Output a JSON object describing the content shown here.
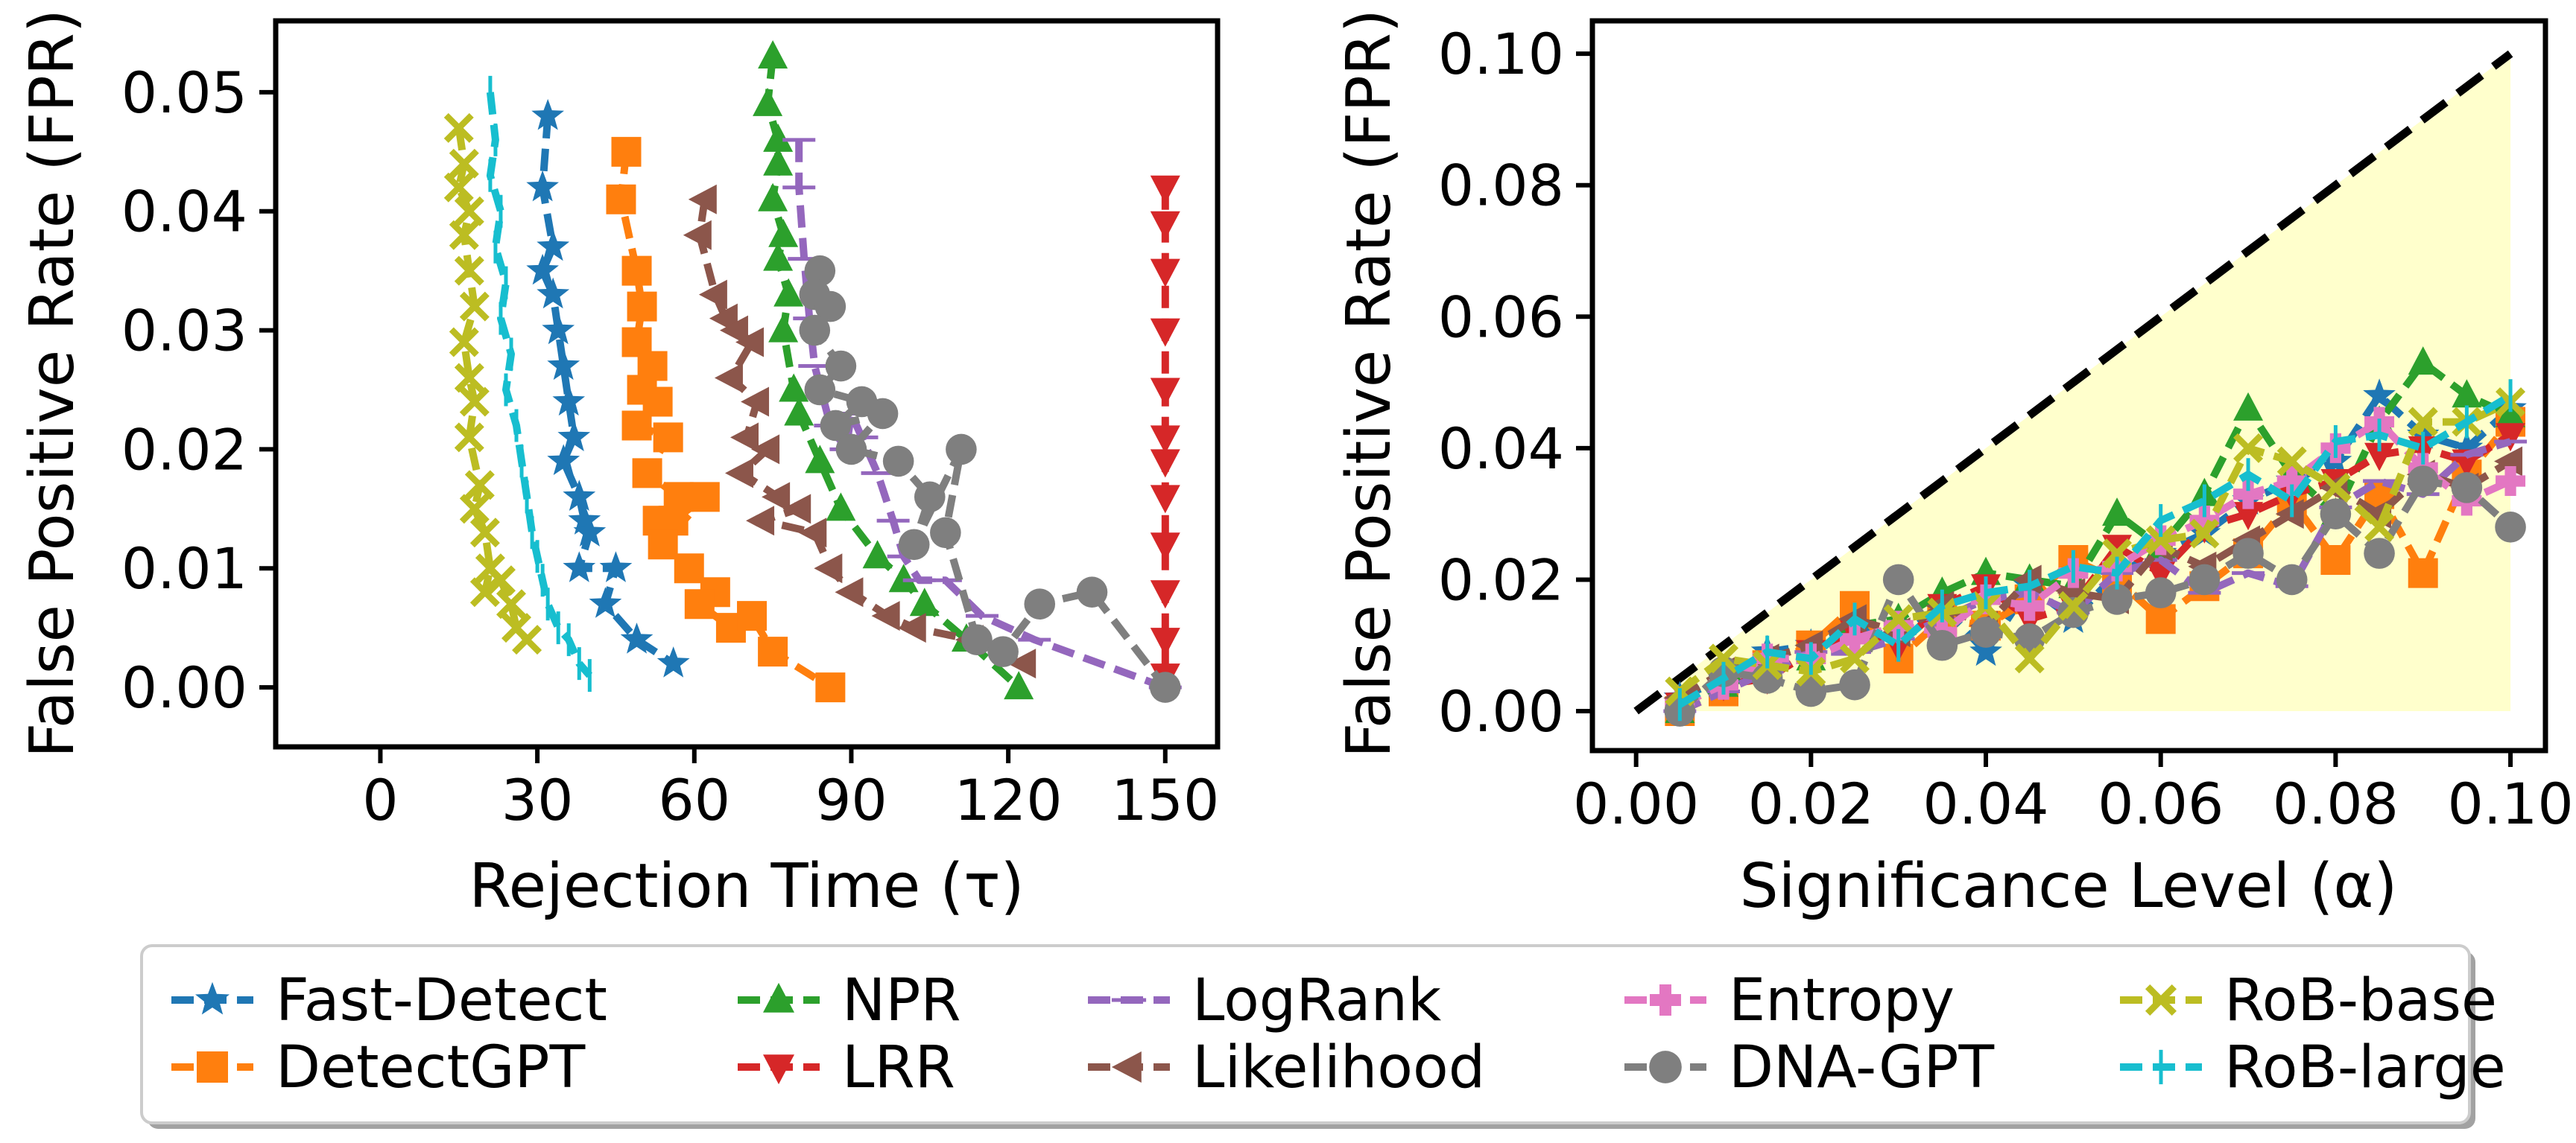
{
  "chart_data": [
    {
      "type": "line",
      "id": "left",
      "title": "",
      "xlabel": "Rejection Time (τ)",
      "ylabel": "False Positive Rate (FPR)",
      "xlim": [
        -20,
        160
      ],
      "ylim": [
        -0.005,
        0.056
      ],
      "xticks": [
        0,
        30,
        60,
        90,
        120,
        150
      ],
      "yticks": [
        0.0,
        0.01,
        0.02,
        0.03,
        0.04,
        0.05
      ],
      "xtick_labels": [
        "0",
        "30",
        "60",
        "90",
        "120",
        "150"
      ],
      "ytick_labels": [
        "0.00",
        "0.01",
        "0.02",
        "0.03",
        "0.04",
        "0.05"
      ],
      "series": [
        {
          "name": "Fast-Detect",
          "x": [
            32,
            31,
            33,
            31,
            33,
            34,
            35,
            36,
            37,
            35,
            38,
            39,
            40,
            38,
            45,
            43,
            49,
            56
          ],
          "y": [
            0.048,
            0.042,
            0.037,
            0.035,
            0.033,
            0.03,
            0.027,
            0.024,
            0.021,
            0.019,
            0.016,
            0.014,
            0.013,
            0.01,
            0.01,
            0.007,
            0.004,
            0.002
          ]
        },
        {
          "name": "DetectGPT",
          "x": [
            47,
            46,
            49,
            50,
            49,
            52,
            50,
            53,
            49,
            55,
            51,
            57,
            53,
            56,
            62,
            54,
            59,
            64,
            61,
            67,
            71,
            75,
            86
          ],
          "y": [
            0.045,
            0.041,
            0.035,
            0.032,
            0.029,
            0.027,
            0.025,
            0.024,
            0.022,
            0.021,
            0.018,
            0.016,
            0.014,
            0.014,
            0.016,
            0.012,
            0.01,
            0.008,
            0.007,
            0.005,
            0.006,
            0.003,
            0.0
          ]
        },
        {
          "name": "NPR",
          "x": [
            75,
            74,
            76,
            76,
            75,
            77,
            76,
            78,
            77,
            79,
            80,
            84,
            88,
            95,
            100,
            104,
            112,
            122
          ],
          "y": [
            0.053,
            0.049,
            0.046,
            0.044,
            0.041,
            0.038,
            0.036,
            0.033,
            0.03,
            0.025,
            0.023,
            0.019,
            0.015,
            0.011,
            0.009,
            0.007,
            0.004,
            0.0
          ]
        },
        {
          "name": "LRR",
          "x": [
            150,
            150,
            150,
            150,
            150,
            150,
            150,
            150,
            150,
            150,
            150,
            150
          ],
          "y": [
            0.042,
            0.039,
            0.035,
            0.03,
            0.025,
            0.021,
            0.019,
            0.016,
            0.012,
            0.008,
            0.004,
            0.001
          ]
        },
        {
          "name": "LogRank",
          "x": [
            80,
            80,
            81,
            82,
            83,
            86,
            89,
            90,
            92,
            95,
            98,
            100,
            103,
            108,
            115,
            125,
            150
          ],
          "y": [
            0.046,
            0.042,
            0.036,
            0.031,
            0.027,
            0.022,
            0.02,
            0.023,
            0.021,
            0.018,
            0.014,
            0.011,
            0.009,
            0.009,
            0.006,
            0.004,
            0.0
          ]
        },
        {
          "name": "Likelihood",
          "x": [
            62,
            61,
            64,
            66,
            68,
            71,
            67,
            72,
            70,
            74,
            69,
            76,
            80,
            73,
            83,
            86,
            90,
            97,
            102,
            113,
            123
          ],
          "y": [
            0.041,
            0.038,
            0.033,
            0.031,
            0.03,
            0.029,
            0.026,
            0.024,
            0.021,
            0.02,
            0.018,
            0.016,
            0.015,
            0.014,
            0.013,
            0.01,
            0.008,
            0.006,
            0.005,
            0.004,
            0.002
          ]
        },
        {
          "name": "DNA-GPT",
          "x": [
            84,
            83,
            86,
            83,
            88,
            84,
            92,
            87,
            96,
            90,
            99,
            105,
            102,
            111,
            108,
            114,
            119,
            126,
            136,
            150
          ],
          "y": [
            0.035,
            0.033,
            0.032,
            0.03,
            0.027,
            0.025,
            0.024,
            0.022,
            0.023,
            0.02,
            0.019,
            0.016,
            0.012,
            0.02,
            0.013,
            0.004,
            0.003,
            0.007,
            0.008,
            0.0
          ]
        },
        {
          "name": "RoB-base",
          "x": [
            15,
            16,
            15,
            17,
            16,
            17,
            18,
            16,
            17,
            18,
            17,
            19,
            18,
            20,
            21,
            20,
            23,
            25,
            26,
            28
          ],
          "y": [
            0.047,
            0.044,
            0.042,
            0.04,
            0.038,
            0.035,
            0.032,
            0.029,
            0.026,
            0.024,
            0.021,
            0.017,
            0.015,
            0.013,
            0.01,
            0.008,
            0.009,
            0.007,
            0.005,
            0.004
          ]
        },
        {
          "name": "RoB-large",
          "x": [
            21,
            22,
            21,
            23,
            22,
            24,
            23,
            25,
            24,
            26,
            27,
            28,
            29,
            30,
            31,
            32,
            34,
            36,
            38,
            40
          ],
          "y": [
            0.05,
            0.046,
            0.043,
            0.04,
            0.037,
            0.034,
            0.031,
            0.028,
            0.025,
            0.022,
            0.019,
            0.016,
            0.013,
            0.011,
            0.009,
            0.007,
            0.005,
            0.004,
            0.002,
            0.001
          ]
        }
      ]
    },
    {
      "type": "line",
      "id": "right",
      "title": "",
      "xlabel": "Significance Level (α)",
      "ylabel": "False Positive Rate (FPR)",
      "xlim": [
        -0.005,
        0.104
      ],
      "ylim": [
        -0.006,
        0.105
      ],
      "xticks": [
        0.0,
        0.02,
        0.04,
        0.06,
        0.08,
        0.1
      ],
      "yticks": [
        0.0,
        0.02,
        0.04,
        0.06,
        0.08,
        0.1
      ],
      "xtick_labels": [
        "0.00",
        "0.02",
        "0.04",
        "0.06",
        "0.08",
        "0.10"
      ],
      "ytick_labels": [
        "0.00",
        "0.02",
        "0.04",
        "0.06",
        "0.08",
        "0.10"
      ],
      "diagonal": {
        "x": [
          0.0,
          0.1
        ],
        "y": [
          0.0,
          0.1
        ],
        "style": "dashed",
        "color": "#000000"
      },
      "shaded_region": {
        "x": [
          0.005,
          0.1
        ],
        "color": "#ffffcc"
      },
      "alphas": [
        0.005,
        0.01,
        0.015,
        0.02,
        0.025,
        0.03,
        0.035,
        0.04,
        0.045,
        0.05,
        0.055,
        0.06,
        0.065,
        0.07,
        0.075,
        0.08,
        0.085,
        0.09,
        0.095,
        0.1
      ],
      "series": [
        {
          "name": "Fast-Detect",
          "y": [
            0.002,
            0.005,
            0.009,
            0.01,
            0.013,
            0.011,
            0.016,
            0.009,
            0.019,
            0.014,
            0.021,
            0.024,
            0.027,
            0.032,
            0.035,
            0.038,
            0.048,
            0.042,
            0.04,
            0.046
          ]
        },
        {
          "name": "DetectGPT",
          "y": [
            0.0,
            0.003,
            0.007,
            0.01,
            0.016,
            0.008,
            0.014,
            0.013,
            0.017,
            0.023,
            0.02,
            0.014,
            0.019,
            0.024,
            0.032,
            0.023,
            0.033,
            0.021,
            0.036,
            0.044
          ]
        },
        {
          "name": "NPR",
          "y": [
            0.0,
            0.004,
            0.006,
            0.008,
            0.013,
            0.014,
            0.018,
            0.021,
            0.02,
            0.019,
            0.03,
            0.025,
            0.033,
            0.046,
            0.036,
            0.03,
            0.044,
            0.053,
            0.048,
            0.045
          ]
        },
        {
          "name": "LRR",
          "y": [
            0.001,
            0.004,
            0.005,
            0.009,
            0.012,
            0.01,
            0.016,
            0.019,
            0.014,
            0.016,
            0.025,
            0.021,
            0.028,
            0.03,
            0.033,
            0.035,
            0.039,
            0.04,
            0.038,
            0.042
          ]
        },
        {
          "name": "LogRank",
          "y": [
            0.0,
            0.003,
            0.006,
            0.009,
            0.009,
            0.011,
            0.014,
            0.017,
            0.018,
            0.015,
            0.021,
            0.023,
            0.018,
            0.021,
            0.019,
            0.031,
            0.035,
            0.033,
            0.039,
            0.041
          ]
        },
        {
          "name": "Likelihood",
          "y": [
            0.002,
            0.006,
            0.008,
            0.01,
            0.014,
            0.012,
            0.016,
            0.013,
            0.02,
            0.018,
            0.017,
            0.025,
            0.022,
            0.026,
            0.03,
            0.034,
            0.03,
            0.036,
            0.034,
            0.038
          ]
        },
        {
          "name": "Entropy",
          "y": [
            0.001,
            0.004,
            0.008,
            0.008,
            0.011,
            0.013,
            0.012,
            0.017,
            0.016,
            0.021,
            0.022,
            0.026,
            0.029,
            0.033,
            0.035,
            0.04,
            0.044,
            0.037,
            0.032,
            0.035
          ]
        },
        {
          "name": "DNA-GPT",
          "y": [
            0.0,
            0.006,
            0.005,
            0.003,
            0.004,
            0.02,
            0.01,
            0.012,
            0.011,
            0.015,
            0.017,
            0.018,
            0.02,
            0.024,
            0.02,
            0.03,
            0.024,
            0.035,
            0.034,
            0.028
          ]
        },
        {
          "name": "RoB-base",
          "y": [
            0.003,
            0.008,
            0.007,
            0.006,
            0.008,
            0.014,
            0.015,
            0.016,
            0.008,
            0.016,
            0.024,
            0.026,
            0.027,
            0.04,
            0.038,
            0.034,
            0.028,
            0.044,
            0.044,
            0.047
          ]
        },
        {
          "name": "RoB-large",
          "y": [
            0.001,
            0.005,
            0.009,
            0.008,
            0.014,
            0.01,
            0.016,
            0.018,
            0.019,
            0.022,
            0.021,
            0.029,
            0.032,
            0.036,
            0.032,
            0.041,
            0.042,
            0.04,
            0.044,
            0.048
          ]
        }
      ]
    }
  ],
  "legend": {
    "placement": "bottom-center",
    "items": [
      {
        "name": "Fast-Detect",
        "color": "#1f77b4",
        "marker": "star"
      },
      {
        "name": "DetectGPT",
        "color": "#ff7f0e",
        "marker": "square"
      },
      {
        "name": "NPR",
        "color": "#2ca02c",
        "marker": "triangle-up"
      },
      {
        "name": "LRR",
        "color": "#d62728",
        "marker": "triangle-down"
      },
      {
        "name": "LogRank",
        "color": "#9467bd",
        "marker": "hline"
      },
      {
        "name": "Likelihood",
        "color": "#8c564b",
        "marker": "triangle-left"
      },
      {
        "name": "Entropy",
        "color": "#e377c2",
        "marker": "plus"
      },
      {
        "name": "DNA-GPT",
        "color": "#7f7f7f",
        "marker": "circle"
      },
      {
        "name": "RoB-base",
        "color": "#bcbd22",
        "marker": "x"
      },
      {
        "name": "RoB-large",
        "color": "#17becf",
        "marker": "vline"
      }
    ]
  }
}
